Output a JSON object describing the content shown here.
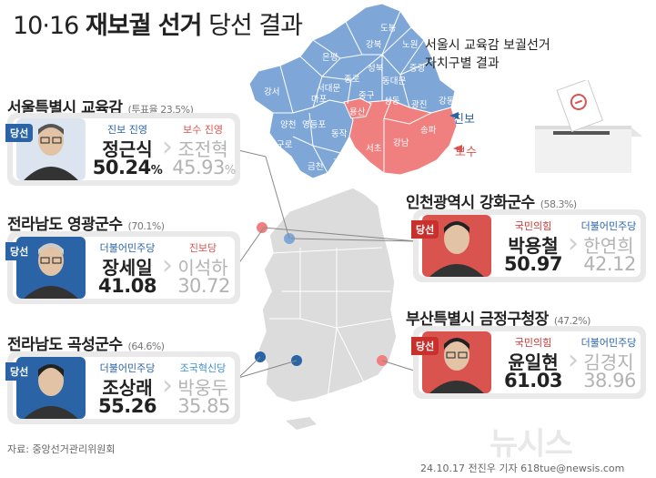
{
  "header": {
    "date": "10·16",
    "title_bold": "재보궐 선거",
    "title_rest": "당선 결과"
  },
  "map": {
    "caption_line1": "서울시 교육감 보궐선거",
    "caption_line2": "자치구별 결과",
    "legend_jinbo": "진보",
    "legend_bosu": "보수",
    "colors": {
      "jinbo": "#7ea7d8",
      "bosu": "#f08080"
    },
    "districts": [
      "도봉",
      "강북",
      "노원",
      "은평",
      "성북",
      "중랑",
      "종로",
      "동대문",
      "서대문",
      "마포",
      "중구",
      "성동",
      "광진",
      "강동",
      "강서",
      "용산",
      "양천",
      "영등포",
      "동작",
      "구로",
      "서초",
      "강남",
      "송파",
      "금천",
      "관악"
    ]
  },
  "elections": {
    "seoul": {
      "title": "서울특별시 교육감",
      "turnout": "(투표율 23.5%)",
      "badge": "당선",
      "winner_party": "진보 진영",
      "winner_name": "정근식",
      "winner_value": "50.24",
      "winner_unit": "%",
      "loser_party": "보수 진영",
      "loser_name": "조전혁",
      "loser_value": "45.93",
      "loser_unit": "%"
    },
    "yeonggwang": {
      "title": "전라남도 영광군수",
      "turnout": "(70.1%)",
      "badge": "당선",
      "winner_party": "더불어민주당",
      "winner_name": "장세일",
      "winner_value": "41.08",
      "loser_party": "진보당",
      "loser_name": "이석하",
      "loser_value": "30.72"
    },
    "gokseong": {
      "title": "전라남도 곡성군수",
      "turnout": "(64.6%)",
      "badge": "당선",
      "winner_party": "더불어민주당",
      "winner_name": "조상래",
      "winner_value": "55.26",
      "loser_party": "조국혁신당",
      "loser_name": "박웅두",
      "loser_value": "35.85"
    },
    "ganghwa": {
      "title": "인천광역시 강화군수",
      "turnout": "(58.3%)",
      "badge": "당선",
      "winner_party": "국민의힘",
      "winner_name": "박용철",
      "winner_value": "50.97",
      "loser_party": "더불어민주당",
      "loser_name": "한연희",
      "loser_value": "42.12"
    },
    "geumjeong": {
      "title": "부산특별시 금정구청장",
      "turnout": "(47.2%)",
      "badge": "당선",
      "winner_party": "국민의힘",
      "winner_name": "윤일현",
      "winner_value": "61.03",
      "loser_party": "더불어민주당",
      "loser_name": "김경지",
      "loser_value": "38.96"
    }
  },
  "footer": {
    "source": "자료: 중앙선거관리위원회",
    "credit": "24.10.17  전진우 기자  618tue@newsis.com",
    "logo": "뉴시스"
  }
}
